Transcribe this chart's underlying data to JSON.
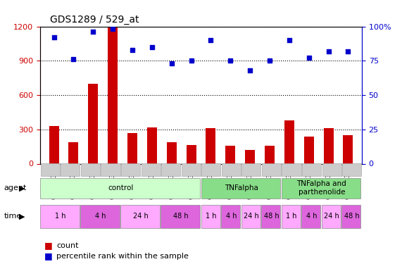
{
  "title": "GDS1289 / 529_at",
  "samples": [
    "GSM47302",
    "GSM47304",
    "GSM47305",
    "GSM47306",
    "GSM47307",
    "GSM47308",
    "GSM47309",
    "GSM47310",
    "GSM47311",
    "GSM47312",
    "GSM47313",
    "GSM47314",
    "GSM47315",
    "GSM47316",
    "GSM47318",
    "GSM47320"
  ],
  "counts": [
    330,
    190,
    700,
    1190,
    270,
    320,
    190,
    165,
    310,
    155,
    120,
    160,
    380,
    235,
    310,
    250
  ],
  "percentiles": [
    92,
    76,
    96,
    98,
    83,
    85,
    73,
    75,
    90,
    75,
    68,
    75,
    90,
    77,
    82,
    82
  ],
  "ylim_left": [
    0,
    1200
  ],
  "ylim_right": [
    0,
    100
  ],
  "yticks_left": [
    0,
    300,
    600,
    900,
    1200
  ],
  "yticks_right": [
    0,
    25,
    50,
    75,
    100
  ],
  "bar_color": "#cc0000",
  "dot_color": "#0000cc",
  "grid_color": "#000000",
  "bg_color": "#ffffff",
  "agent_groups": [
    {
      "label": "control",
      "start": 0,
      "end": 8,
      "color": "#ccffcc"
    },
    {
      "label": "TNFalpha",
      "start": 8,
      "end": 12,
      "color": "#99ee99"
    },
    {
      "label": "TNFalpha and\nparthenolide",
      "start": 12,
      "end": 16,
      "color": "#99ee99"
    }
  ],
  "time_groups": [
    {
      "label": "1 h",
      "start": 0,
      "end": 2,
      "color": "#ff99ff"
    },
    {
      "label": "4 h",
      "start": 2,
      "end": 4,
      "color": "#ee66ee"
    },
    {
      "label": "24 h",
      "start": 4,
      "end": 6,
      "color": "#ff99ff"
    },
    {
      "label": "48 h",
      "start": 6,
      "end": 8,
      "color": "#ee66ee"
    },
    {
      "label": "1 h",
      "start": 8,
      "end": 9,
      "color": "#ff99ff"
    },
    {
      "label": "4 h",
      "start": 9,
      "end": 10,
      "color": "#ee66ee"
    },
    {
      "label": "24 h",
      "start": 10,
      "end": 11,
      "color": "#ff99ff"
    },
    {
      "label": "48 h",
      "start": 11,
      "end": 12,
      "color": "#ee66ee"
    },
    {
      "label": "1 h",
      "start": 12,
      "end": 13,
      "color": "#ff99ff"
    },
    {
      "label": "4 h",
      "start": 13,
      "end": 14,
      "color": "#ee66ee"
    },
    {
      "label": "24 h",
      "start": 14,
      "end": 15,
      "color": "#ff99ff"
    },
    {
      "label": "48 h",
      "start": 15,
      "end": 16,
      "color": "#ee66ee"
    }
  ],
  "legend_count_label": "count",
  "legend_pct_label": "percentile rank within the sample",
  "tick_color_left": "#cc0000",
  "tick_color_right": "#0000cc",
  "agent_label_color": "#000000",
  "time_label_color": "#000000",
  "sample_bg_color": "#cccccc"
}
